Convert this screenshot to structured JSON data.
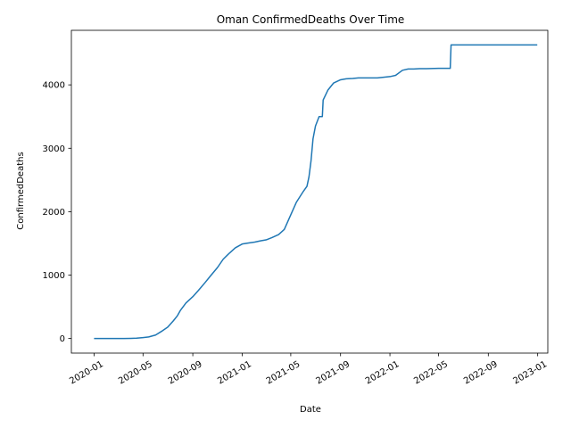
{
  "chart_data": {
    "type": "line",
    "title": "Oman  ConfirmedDeaths Over Time",
    "xlabel": "Date",
    "ylabel": "ConfirmedDeaths",
    "x_axis_type": "date",
    "xlim": [
      "2019-11-06",
      "2023-01-26"
    ],
    "ylim": [
      -230,
      4860
    ],
    "x_ticks": [
      "2020-01",
      "2020-05",
      "2020-09",
      "2021-01",
      "2021-05",
      "2021-09",
      "2022-01",
      "2022-05",
      "2022-09",
      "2023-01"
    ],
    "y_ticks": [
      0,
      1000,
      2000,
      3000,
      4000
    ],
    "grid": false,
    "legend": "none",
    "color": "#1f77b4",
    "series": [
      {
        "x": [
          "2020-01-01",
          "2020-03-15",
          "2020-04-01",
          "2020-04-15",
          "2020-05-01",
          "2020-05-15",
          "2020-06-01",
          "2020-06-15",
          "2020-07-01",
          "2020-07-15",
          "2020-07-25",
          "2020-08-01",
          "2020-08-15",
          "2020-09-01",
          "2020-09-15",
          "2020-10-01",
          "2020-10-15",
          "2020-11-01",
          "2020-11-15",
          "2020-12-01",
          "2020-12-15",
          "2021-01-01",
          "2021-01-15",
          "2021-02-01",
          "2021-02-15",
          "2021-03-01",
          "2021-03-15",
          "2021-04-01",
          "2021-04-15",
          "2021-05-01",
          "2021-05-15",
          "2021-06-01",
          "2021-06-10",
          "2021-06-15",
          "2021-06-20",
          "2021-06-25",
          "2021-07-01",
          "2021-07-10",
          "2021-07-15",
          "2021-07-18",
          "2021-07-20",
          "2021-08-01",
          "2021-08-15",
          "2021-09-01",
          "2021-09-15",
          "2021-10-01",
          "2021-10-15",
          "2021-11-01",
          "2021-12-01",
          "2022-01-01",
          "2022-01-15",
          "2022-02-01",
          "2022-02-15",
          "2022-03-01",
          "2022-03-15",
          "2022-04-01",
          "2022-05-01",
          "2022-05-30",
          "2022-06-01",
          "2022-06-15",
          "2022-09-01",
          "2022-12-31"
        ],
        "y": [
          0,
          0,
          2,
          5,
          15,
          25,
          55,
          110,
          180,
          280,
          360,
          440,
          560,
          660,
          760,
          880,
          990,
          1120,
          1250,
          1350,
          1430,
          1490,
          1505,
          1520,
          1540,
          1555,
          1590,
          1640,
          1720,
          1950,
          2150,
          2320,
          2400,
          2550,
          2800,
          3150,
          3350,
          3500,
          3500,
          3500,
          3760,
          3920,
          4030,
          4080,
          4095,
          4100,
          4110,
          4110,
          4110,
          4130,
          4150,
          4230,
          4250,
          4250,
          4255,
          4255,
          4260,
          4260,
          4630,
          4630,
          4630,
          4630
        ]
      }
    ]
  }
}
